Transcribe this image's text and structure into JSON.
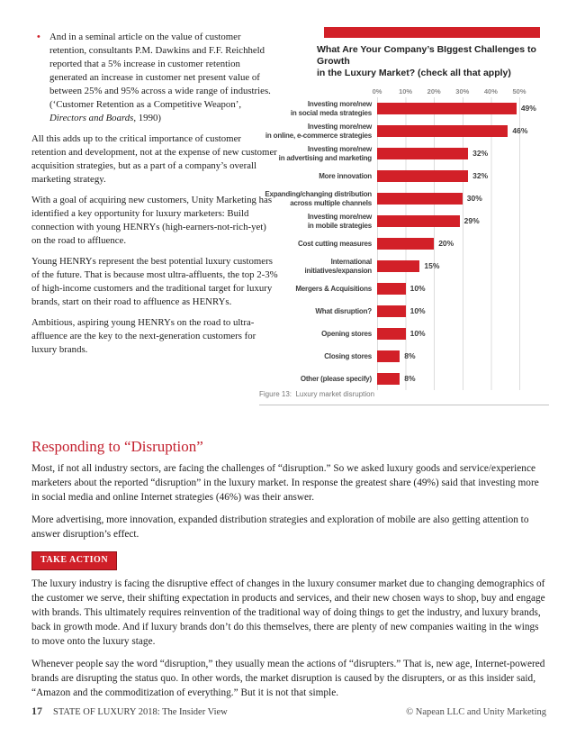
{
  "colors": {
    "accent_red": "#d22028",
    "heading_red": "#c3202e"
  },
  "left": {
    "bullet": {
      "marker": "•",
      "pre": "And in a seminal article on the value of customer retention, consultants P.M. Dawkins and F.F. Reichheld reported that a 5% increase in customer retention generated an increase in customer net present value of between 25% and 95% across a wide range of industries. (‘Customer Retention as a Competitive Weapon’, ",
      "italic": "Directors and Boards",
      "post": ", 1990)"
    },
    "paragraphs": [
      "All this adds up to the critical importance of customer retention and development, not at the expense of new customer acquisition strategies, but as a part of a company’s overall marketing strategy.",
      "With a goal of acquiring new customers, Unity Marketing has identified a key opportunity for luxury marketers: Build connection with young HENRYs (high-earners-not-rich-yet) on the road to affluence.",
      "Young HENRYs represent the best potential luxury customers of the future. That is because most ultra-affluents, the top 2-3% of high-income customers and the traditional target for luxury brands, start on their road to affluence as HENRYs.",
      "Ambitious, aspiring young HENRYs on the road to ultra-affluence are the key to the next-generation customers for luxury brands."
    ]
  },
  "chart_data": {
    "type": "bar",
    "orientation": "horizontal",
    "title": "What Are Your Company’s BIggest Challenges to Growth\nin the Luxury Market? (check all that apply)",
    "categories": [
      "Investing more/new\nin social meda strategies",
      "Investing more/new\nin online, e-commerce strategies",
      "Investing more/new\nin advertising and marketing",
      "More innovation",
      "Expanding/changing distribution\nacross multiple channels",
      "Investing more/new\nin mobile strategies",
      "Cost cutting measures",
      "International\ninitiatives/expansion",
      "Mergers  & Acquisitions",
      "What disruption?",
      "Opening stores",
      "Closing stores",
      "Other (please specify)"
    ],
    "values": [
      49,
      46,
      32,
      32,
      30,
      29,
      20,
      15,
      10,
      10,
      10,
      8,
      8
    ],
    "value_labels": [
      "49%",
      "46%",
      "32%",
      "32%",
      "30%",
      "29%",
      "20%",
      "15%",
      "10%",
      "10%",
      "10%",
      "8%",
      "8%"
    ],
    "xticks": [
      "0%",
      "10%",
      "20%",
      "30%",
      "40%",
      "50%"
    ],
    "xlim": [
      0,
      50
    ],
    "bar_color": "#d22028",
    "grid": "vertical",
    "legend": "none"
  },
  "figure": {
    "caption": "Figure 13:  Luxury market disruption"
  },
  "section": {
    "heading": "Responding to “Disruption”",
    "intro": [
      "Most, if not all industry sectors, are facing the challenges of “disruption.” So we asked luxury goods and service/experience marketers about the reported “disruption” in the luxury market. In response the greatest share (49%) said that investing more in social media and online Internet strategies (46%) was their answer.",
      "More advertising, more innovation, expanded distribution strategies and exploration of mobile are also getting attention to answer disruption’s effect."
    ],
    "take_action_label": "TAKE ACTION",
    "action": [
      "The luxury industry is facing the disruptive effect of changes in the luxury consumer market due to changing demographics of the customer we serve, their shifting expectation in products and services, and their new chosen ways to shop, buy and engage with brands. This ultimately requires reinvention of the traditional way of doing things to get the industry, and luxury brands, back in growth mode. And if luxury brands don’t do this themselves, there are plenty of new companies waiting in the wings to move onto the luxury stage.",
      "Whenever people say the word “disruption,” they usually mean the actions of “disrupters.” That is, new age, Internet-powered brands are disrupting the status quo. In other words, the market disruption is caused by the disrupters, or as this insider said, “Amazon and the commoditization of everything.” But it is not that simple."
    ]
  },
  "footer": {
    "page_number": "17",
    "left_text": "STATE OF LUXURY 2018: The Insider View",
    "right_text": "© Napean LLC and Unity Marketing"
  }
}
